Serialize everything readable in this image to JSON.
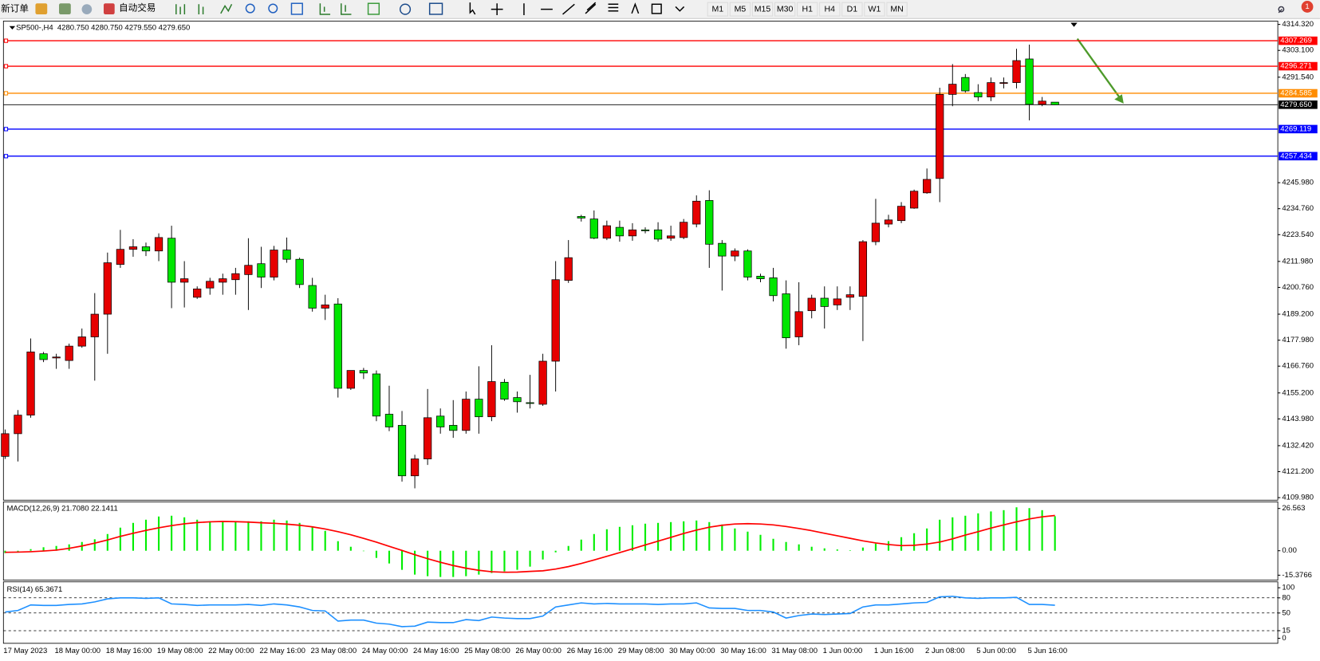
{
  "toolbar": {
    "new_order": "新订单",
    "auto_trading": "自动交易",
    "timeframes": [
      "M1",
      "M5",
      "M15",
      "M30",
      "H1",
      "H4",
      "D1",
      "W1",
      "MN"
    ],
    "alerts": 1
  },
  "chart_data": [
    {
      "type": "candlestick",
      "title": "SP500-,H4",
      "quote": "4280.750 4280.750 4279.550 4279.650",
      "up_color": "#e60000",
      "down_color": "#00e600",
      "categories": [
        "17 May 2023",
        null,
        null,
        null,
        "18 May 00:00",
        null,
        null,
        null,
        "18 May 16:00",
        null,
        null,
        null,
        "19 May 08:00",
        null,
        null,
        null,
        "22 May 00:00",
        null,
        null,
        null,
        "22 May 16:00",
        null,
        null,
        null,
        "23 May 08:00",
        null,
        null,
        null,
        "24 May 00:00",
        null,
        null,
        null,
        "24 May 16:00",
        null,
        null,
        null,
        "25 May 08:00",
        null,
        null,
        null,
        "26 May 00:00",
        null,
        null,
        null,
        "26 May 16:00",
        null,
        null,
        null,
        "29 May 08:00",
        null,
        null,
        null,
        "30 May 00:00",
        null,
        null,
        null,
        "30 May 16:00",
        null,
        null,
        null,
        "31 May 08:00",
        null,
        null,
        null,
        "1 Jun 00:00",
        null,
        null,
        null,
        "1 Jun 16:00",
        null,
        null,
        null,
        "2 Jun 08:00",
        null,
        null,
        null,
        "5 Jun 00:00",
        null,
        null,
        null,
        "5 Jun 16:00",
        null,
        null
      ],
      "open": [
        4127.8,
        4137.6,
        4145.6,
        4172.1,
        4170.3,
        4169.2,
        4175.4,
        4179.4,
        4189.2,
        4210.7,
        4217.2,
        4218.3,
        4216.5,
        4222.0,
        4203.0,
        4196.5,
        4200.5,
        4203.0,
        4204.1,
        4206.3,
        4211.0,
        4205.2,
        4216.9,
        4212.9,
        4201.6,
        4191.8,
        4193.6,
        4157.2,
        4164.9,
        4163.4,
        4146.0,
        4141.2,
        4119.4,
        4126.7,
        4145.2,
        4141.2,
        4139.0,
        4152.5,
        4144.9,
        4159.8,
        4153.2,
        4151.0,
        4150.3,
        4168.9,
        4203.8,
        4231.4,
        4230.3,
        4222.0,
        4226.7,
        4223.0,
        4225.6,
        4225.6,
        4222.0,
        4222.3,
        4228.1,
        4238.3,
        4219.8,
        4214.3,
        4216.5,
        4205.6,
        4204.9,
        4198.0,
        4179.4,
        4190.7,
        4196.1,
        4193.2,
        4196.5,
        4196.9,
        4220.5,
        4228.1,
        4229.6,
        4235.0,
        4241.6,
        4247.8,
        4284.1,
        4291.4,
        4284.9,
        4283.0,
        4288.9,
        4289.2,
        4299.4,
        4279.8,
        4280.75
      ],
      "high": [
        4139.4,
        4147.8,
        4178.7,
        4172.9,
        4172.1,
        4176.5,
        4183.0,
        4198.3,
        4215.8,
        4225.6,
        4221.6,
        4220.1,
        4224.1,
        4227.4,
        4212.1,
        4201.2,
        4204.9,
        4206.7,
        4209.2,
        4222.0,
        4218.3,
        4218.7,
        4222.3,
        4213.6,
        4204.9,
        4197.6,
        4196.1,
        4164.9,
        4166.0,
        4164.9,
        4158.3,
        4147.4,
        4128.5,
        4156.9,
        4148.5,
        4152.1,
        4155.8,
        4166.7,
        4175.8,
        4161.2,
        4155.8,
        4163.0,
        4172.1,
        4212.1,
        4221.2,
        4232.1,
        4234.0,
        4229.6,
        4229.6,
        4228.5,
        4226.7,
        4228.9,
        4227.4,
        4230.3,
        4240.5,
        4242.7,
        4221.2,
        4217.6,
        4217.2,
        4206.7,
        4209.2,
        4203.8,
        4203.0,
        4197.6,
        4201.2,
        4201.2,
        4201.2,
        4221.2,
        4239.0,
        4232.1,
        4237.6,
        4243.0,
        4252.1,
        4287.0,
        4297.2,
        4292.9,
        4288.5,
        4291.4,
        4291.4,
        4303.8,
        4305.6,
        4283.0,
        4280.75
      ],
      "low": [
        4126.7,
        4125.6,
        4144.5,
        4168.5,
        4165.6,
        4165.6,
        4174.7,
        4160.5,
        4172.1,
        4209.2,
        4214.0,
        4214.3,
        4212.1,
        4191.8,
        4192.1,
        4195.8,
        4197.6,
        4197.6,
        4197.6,
        4191.0,
        4200.5,
        4203.8,
        4211.4,
        4200.5,
        4190.3,
        4186.7,
        4153.2,
        4156.5,
        4161.2,
        4143.0,
        4138.7,
        4116.9,
        4114.0,
        4124.1,
        4137.6,
        4135.8,
        4137.6,
        4137.6,
        4143.0,
        4151.8,
        4146.7,
        4148.5,
        4149.6,
        4155.8,
        4202.7,
        4229.2,
        4221.6,
        4221.2,
        4220.5,
        4220.9,
        4224.1,
        4220.5,
        4220.9,
        4221.6,
        4226.7,
        4209.2,
        4199.4,
        4212.1,
        4203.8,
        4203.0,
        4194.7,
        4174.3,
        4175.8,
        4187.4,
        4183.0,
        4191.0,
        4191.0,
        4177.6,
        4219.0,
        4226.7,
        4228.5,
        4234.7,
        4241.2,
        4237.6,
        4279.0,
        4284.9,
        4281.2,
        4281.2,
        4286.7,
        4286.7,
        4272.9,
        4279.0,
        4279.55
      ],
      "close": [
        4137.6,
        4145.6,
        4172.9,
        4169.6,
        4170.7,
        4175.4,
        4179.4,
        4189.2,
        4211.4,
        4217.2,
        4218.3,
        4216.5,
        4222.3,
        4203.0,
        4204.5,
        4200.1,
        4203.4,
        4204.5,
        4206.7,
        4210.3,
        4205.2,
        4216.9,
        4212.9,
        4202.0,
        4191.8,
        4193.2,
        4157.2,
        4164.9,
        4163.8,
        4145.2,
        4140.5,
        4119.4,
        4126.7,
        4144.5,
        4140.5,
        4139.0,
        4152.5,
        4144.9,
        4160.1,
        4152.5,
        4151.4,
        4150.7,
        4168.9,
        4204.1,
        4213.6,
        4230.7,
        4222.0,
        4227.4,
        4223.0,
        4225.6,
        4225.2,
        4221.6,
        4223.0,
        4228.9,
        4238.0,
        4219.4,
        4214.3,
        4216.5,
        4205.2,
        4204.5,
        4197.2,
        4179.0,
        4190.3,
        4196.1,
        4192.5,
        4195.8,
        4197.6,
        4220.5,
        4228.5,
        4229.9,
        4235.8,
        4242.3,
        4247.4,
        4284.1,
        4288.5,
        4285.6,
        4283.0,
        4289.2,
        4289.2,
        4298.7,
        4279.8,
        4281.2,
        4279.65
      ],
      "ylim": [
        4109.25,
        4315.41
      ],
      "yticks": [
        {
          "value": 4314.32,
          "label": "4314.320"
        },
        {
          "value": 4303.1,
          "label": "4303.100"
        },
        {
          "value": 4291.54,
          "label": "4291.540"
        },
        {
          "value": 4245.98,
          "label": "4245.980"
        },
        {
          "value": 4234.76,
          "label": "4234.760"
        },
        {
          "value": 4223.54,
          "label": "4223.540"
        },
        {
          "value": 4211.98,
          "label": "4211.980"
        },
        {
          "value": 4200.76,
          "label": "4200.760"
        },
        {
          "value": 4189.2,
          "label": "4189.200"
        },
        {
          "value": 4177.98,
          "label": "4177.980"
        },
        {
          "value": 4166.76,
          "label": "4166.760"
        },
        {
          "value": 4155.2,
          "label": "4155.200"
        },
        {
          "value": 4143.98,
          "label": "4143.980"
        },
        {
          "value": 4132.42,
          "label": "4132.420"
        },
        {
          "value": 4121.2,
          "label": "4121.200"
        },
        {
          "value": 4109.98,
          "label": "4109.980"
        }
      ],
      "levels": [
        {
          "value": 4307.269,
          "label": "4307.269",
          "color": "#ff0000"
        },
        {
          "value": 4296.271,
          "label": "4296.271",
          "color": "#ff0000"
        },
        {
          "value": 4284.585,
          "label": "4284.585",
          "color": "#ff8c00"
        },
        {
          "value": 4269.119,
          "label": "4269.119",
          "color": "#0000ff"
        },
        {
          "value": 4257.434,
          "label": "4257.434",
          "color": "#0000ff"
        }
      ],
      "current": {
        "value": 4279.65,
        "label": "4279.650",
        "color": "#000000"
      }
    },
    {
      "type": "macd",
      "title": "MACD(12,26,9) 21.7080 22.1411",
      "series": [
        {
          "style": "bar",
          "color": "#00ee00",
          "values": [
            -1.5,
            -0.5,
            1.0,
            2.2,
            3.0,
            4.0,
            5.5,
            7.2,
            10.5,
            14.5,
            17.5,
            19.5,
            21.5,
            22.0,
            21.0,
            19.5,
            18.5,
            18.0,
            18.0,
            18.5,
            18.5,
            19.5,
            19.0,
            17.5,
            15.0,
            12.5,
            6.0,
            2.5,
            0.0,
            -4.5,
            -8.0,
            -12.0,
            -15.0,
            -16.0,
            -16.5,
            -16.5,
            -16.0,
            -15.0,
            -14.0,
            -13.0,
            -12.0,
            -10.0,
            -5.5,
            -1.0,
            3.0,
            7.0,
            10.5,
            13.5,
            15.0,
            16.0,
            17.0,
            17.5,
            18.0,
            18.5,
            19.0,
            18.0,
            16.5,
            14.0,
            12.0,
            10.0,
            7.5,
            5.5,
            4.0,
            2.5,
            1.5,
            0.8,
            0.3,
            2.0,
            4.5,
            6.0,
            8.5,
            11.0,
            14.0,
            19.5,
            21.0,
            22.0,
            23.5,
            24.7,
            25.5,
            27.3,
            26.8,
            25.5,
            21.708
          ]
        },
        {
          "style": "line",
          "color": "#ff0000",
          "values": [
            -1.0,
            -0.9,
            -0.6,
            -0.2,
            0.4,
            1.5,
            3.0,
            4.8,
            6.8,
            9.0,
            11.0,
            12.8,
            14.4,
            15.8,
            16.9,
            17.7,
            18.2,
            18.4,
            18.3,
            18.0,
            17.6,
            17.2,
            16.7,
            16.0,
            15.0,
            13.7,
            12.0,
            10.0,
            7.8,
            5.4,
            2.8,
            0.2,
            -2.5,
            -5.0,
            -7.3,
            -9.3,
            -11.0,
            -12.3,
            -13.2,
            -13.5,
            -13.4,
            -13.0,
            -12.6,
            -11.5,
            -10.0,
            -8.0,
            -5.8,
            -3.5,
            -1.2,
            1.2,
            3.6,
            6.0,
            8.4,
            10.8,
            13.0,
            14.8,
            16.0,
            16.8,
            17.0,
            16.8,
            16.2,
            15.2,
            14.0,
            12.6,
            11.0,
            9.4,
            7.8,
            6.2,
            4.9,
            3.9,
            3.2,
            3.4,
            4.2,
            5.5,
            7.5,
            9.8,
            12.0,
            14.2,
            16.2,
            18.2,
            20.0,
            21.3,
            22.1411
          ]
        }
      ],
      "ylim": [
        -17.97,
        30.19
      ],
      "yticks": [
        26.563,
        {
          "value": 0,
          "label": "0.00"
        },
        -15.3766
      ]
    },
    {
      "type": "rsi",
      "title": "RSI(14) 65.3671",
      "color": "#1e90ff",
      "values": [
        52,
        55,
        66,
        65,
        65,
        67,
        68,
        72,
        78,
        80,
        80,
        79,
        80,
        68,
        67,
        65,
        66,
        66,
        66,
        67,
        65,
        68,
        66,
        62,
        55,
        54,
        34,
        36,
        36,
        30,
        28,
        23,
        24,
        32,
        31,
        31,
        37,
        35,
        42,
        40,
        39,
        39,
        44,
        62,
        66,
        70,
        68,
        69,
        68,
        68,
        68,
        67,
        68,
        68,
        70,
        60,
        59,
        59,
        55,
        55,
        52,
        40,
        45,
        48,
        47,
        48,
        49,
        62,
        66,
        66,
        68,
        70,
        71,
        82,
        83,
        80,
        79,
        80,
        80,
        81,
        67,
        67,
        65.3671
      ],
      "ylim": [
        -8.33,
        110
      ],
      "yticks": [
        100,
        80,
        50,
        15,
        0
      ],
      "levels": [
        80,
        50,
        15
      ]
    }
  ]
}
